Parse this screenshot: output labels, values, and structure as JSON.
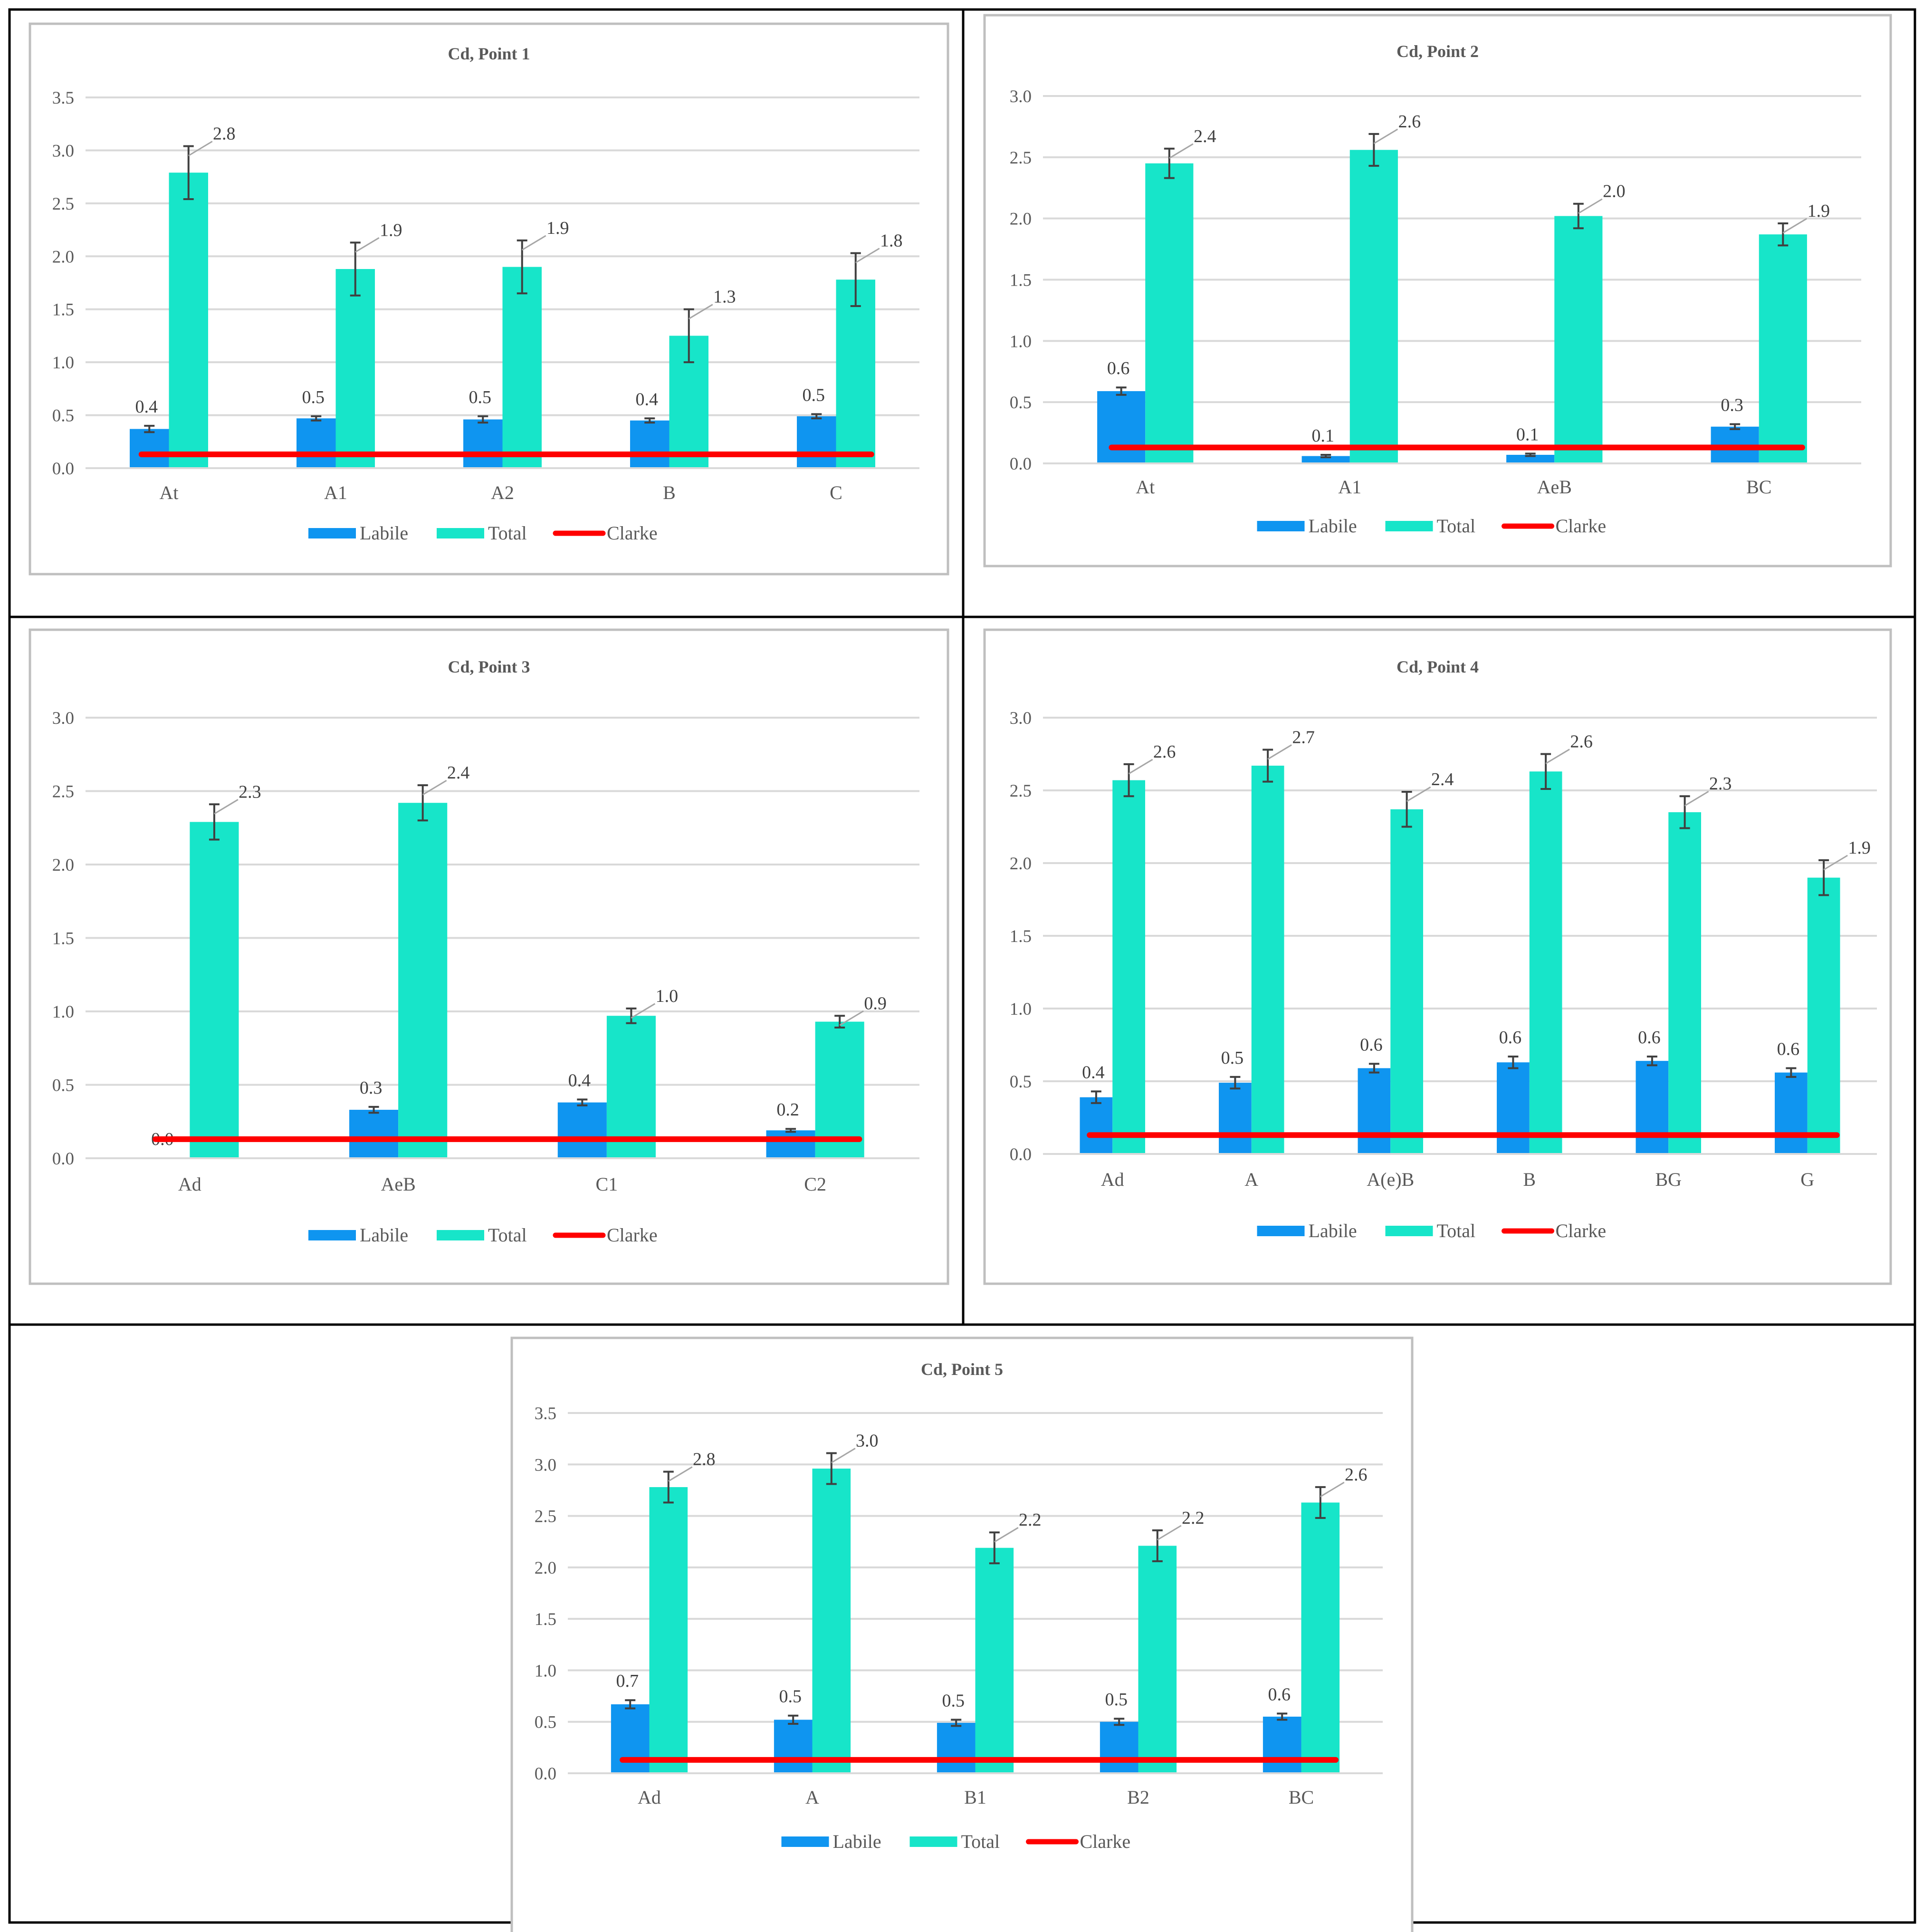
{
  "colors": {
    "labile": "#0f95f0",
    "total": "#17e5c9",
    "clarke": "#ff0000",
    "grid": "#d9d9d9",
    "border": "#000000",
    "panel_border": "#bfbfbf",
    "errorbar": "#404040"
  },
  "legend": {
    "labile": "Labile",
    "total": "Total",
    "clarke": "Clarke"
  },
  "chart_data": [
    {
      "type": "bar",
      "title": "Cd, Point 1",
      "categories": [
        "At",
        "A1",
        "A2",
        "B",
        "C"
      ],
      "ylim": [
        0,
        3.5
      ],
      "yticks": [
        "0.0",
        "0.5",
        "1.0",
        "1.5",
        "2.0",
        "2.5",
        "3.0",
        "3.5"
      ],
      "series": [
        {
          "name": "Labile",
          "values": [
            0.37,
            0.47,
            0.46,
            0.45,
            0.49
          ],
          "errors": [
            0.03,
            0.02,
            0.03,
            0.02,
            0.02
          ],
          "labels": [
            "0.4",
            "0.5",
            "0.5",
            "0.4",
            "0.5"
          ]
        },
        {
          "name": "Total",
          "values": [
            2.79,
            1.88,
            1.9,
            1.25,
            1.78
          ],
          "errors": [
            0.25,
            0.25,
            0.25,
            0.25,
            0.25
          ],
          "labels": [
            "2.8",
            "1.9",
            "1.9",
            "1.3",
            "1.8"
          ]
        }
      ],
      "clarke": 0.13
    },
    {
      "type": "bar",
      "title": "Cd, Point 2",
      "categories": [
        "At",
        "A1",
        "AeB",
        "BC"
      ],
      "ylim": [
        0,
        3.0
      ],
      "yticks": [
        "0.0",
        "0.5",
        "1.0",
        "1.5",
        "2.0",
        "2.5",
        "3.0"
      ],
      "series": [
        {
          "name": "Labile",
          "values": [
            0.59,
            0.06,
            0.07,
            0.3
          ],
          "errors": [
            0.03,
            0.01,
            0.01,
            0.02
          ],
          "labels": [
            "0.6",
            "0.1",
            "0.1",
            "0.3"
          ]
        },
        {
          "name": "Total",
          "values": [
            2.45,
            2.56,
            2.02,
            1.87
          ],
          "errors": [
            0.12,
            0.13,
            0.1,
            0.09
          ],
          "labels": [
            "2.4",
            "2.6",
            "2.0",
            "1.9"
          ]
        }
      ],
      "clarke": 0.13
    },
    {
      "type": "bar",
      "title": "Cd, Point 3",
      "categories": [
        "Ad",
        "AeB",
        "C1",
        "C2"
      ],
      "ylim": [
        0,
        3.0
      ],
      "yticks": [
        "0.0",
        "0.5",
        "1.0",
        "1.5",
        "2.0",
        "2.5",
        "3.0"
      ],
      "series": [
        {
          "name": "Labile",
          "values": [
            0.0,
            0.33,
            0.38,
            0.19
          ],
          "errors": [
            0.0,
            0.02,
            0.02,
            0.01
          ],
          "labels": [
            "0.0",
            "0.3",
            "0.4",
            "0.2"
          ]
        },
        {
          "name": "Total",
          "values": [
            2.29,
            2.42,
            0.97,
            0.93
          ],
          "errors": [
            0.12,
            0.12,
            0.05,
            0.04
          ],
          "labels": [
            "2.3",
            "2.4",
            "1.0",
            "0.9"
          ]
        }
      ],
      "clarke": 0.13
    },
    {
      "type": "bar",
      "title": "Cd, Point 4",
      "categories": [
        "Ad",
        "A",
        "A(e)B",
        "B",
        "BG",
        "G"
      ],
      "ylim": [
        0,
        3.0
      ],
      "yticks": [
        "0.0",
        "0.5",
        "1.0",
        "1.5",
        "2.0",
        "2.5",
        "3.0"
      ],
      "series": [
        {
          "name": "Labile",
          "values": [
            0.39,
            0.49,
            0.59,
            0.63,
            0.64,
            0.56
          ],
          "errors": [
            0.04,
            0.04,
            0.03,
            0.04,
            0.03,
            0.03
          ],
          "labels": [
            "0.4",
            "0.5",
            "0.6",
            "0.6",
            "0.6",
            "0.6"
          ]
        },
        {
          "name": "Total",
          "values": [
            2.57,
            2.67,
            2.37,
            2.63,
            2.35,
            1.9
          ],
          "errors": [
            0.11,
            0.11,
            0.12,
            0.12,
            0.11,
            0.12
          ],
          "labels": [
            "2.6",
            "2.7",
            "2.4",
            "2.6",
            "2.3",
            "1.9"
          ]
        }
      ],
      "clarke": 0.13
    },
    {
      "type": "bar",
      "title": "Cd, Point 5",
      "categories": [
        "Ad",
        "A",
        "B1",
        "B2",
        "BC"
      ],
      "ylim": [
        0,
        3.5
      ],
      "yticks": [
        "0.0",
        "0.5",
        "1.0",
        "1.5",
        "2.0",
        "2.5",
        "3.0",
        "3.5"
      ],
      "series": [
        {
          "name": "Labile",
          "values": [
            0.67,
            0.52,
            0.49,
            0.5,
            0.55
          ],
          "errors": [
            0.04,
            0.04,
            0.03,
            0.03,
            0.03
          ],
          "labels": [
            "0.7",
            "0.5",
            "0.5",
            "0.5",
            "0.6"
          ]
        },
        {
          "name": "Total",
          "values": [
            2.78,
            2.96,
            2.19,
            2.21,
            2.63
          ],
          "errors": [
            0.15,
            0.15,
            0.15,
            0.15,
            0.15
          ],
          "labels": [
            "2.8",
            "3.0",
            "2.2",
            "2.2",
            "2.6"
          ]
        }
      ],
      "clarke": 0.13
    }
  ]
}
